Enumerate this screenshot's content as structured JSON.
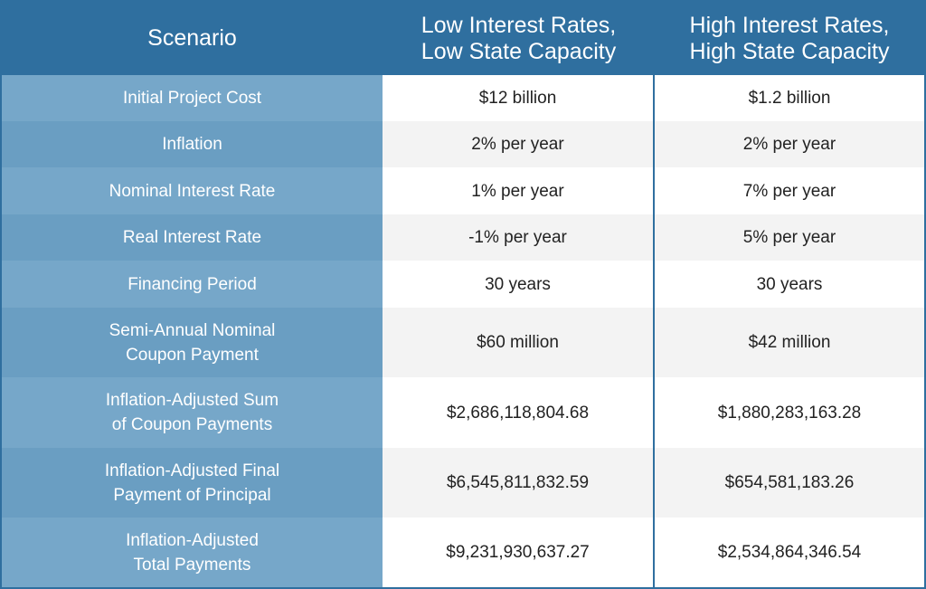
{
  "header": {
    "col0": "Scenario",
    "col1": "Low Interest Rates,\nLow State Capacity",
    "col2": "High Interest Rates,\nHigh State Capacity"
  },
  "rows": [
    {
      "label": "Initial Project Cost",
      "low": "$12 billion",
      "high": "$1.2 billion"
    },
    {
      "label": "Inflation",
      "low": "2% per year",
      "high": "2% per year"
    },
    {
      "label": "Nominal Interest Rate",
      "low": "1% per year",
      "high": "7% per year"
    },
    {
      "label": "Real Interest Rate",
      "low": "-1% per year",
      "high": "5% per year"
    },
    {
      "label": "Financing Period",
      "low": "30 years",
      "high": "30 years"
    },
    {
      "label": "Semi-Annual Nominal\nCoupon Payment",
      "low": "$60 million",
      "high": "$42 million"
    },
    {
      "label": "Inflation-Adjusted Sum\nof Coupon Payments",
      "low": "$2,686,118,804.68",
      "high": "$1,880,283,163.28"
    },
    {
      "label": "Inflation-Adjusted Final\nPayment of Principal",
      "low": "$6,545,811,832.59",
      "high": "$654,581,183.26"
    },
    {
      "label": "Inflation-Adjusted\nTotal Payments",
      "low": "$9,231,930,637.27",
      "high": "$2,534,864,346.54"
    }
  ],
  "colors": {
    "header_bg": "#2f6f9f",
    "label_bg_light": "#76a7c9",
    "label_bg_dark": "#6a9ec2",
    "row_alt_bg": "#f3f3f3"
  }
}
